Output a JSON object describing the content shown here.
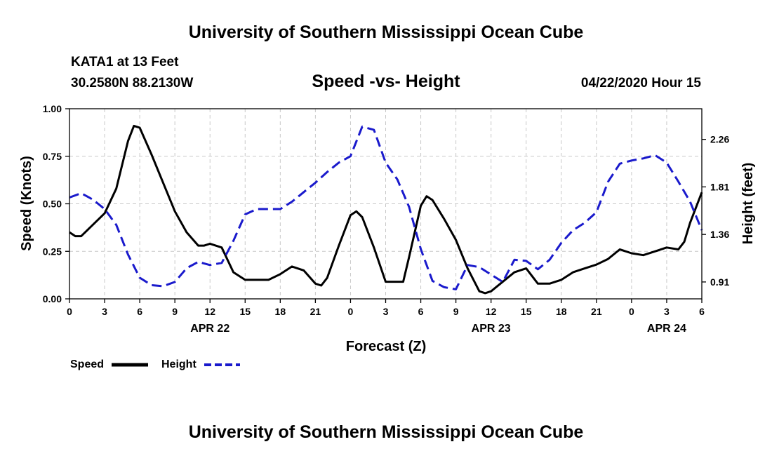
{
  "header": {
    "title": "University of Southern Mississippi Ocean Cube",
    "station": "KATA1 at 13 Feet",
    "location": "30.2580N 88.2130W",
    "plot_title": "Speed -vs- Height",
    "timestamp": "04/22/2020 Hour 15"
  },
  "footer": {
    "title": "University of Southern Mississippi Ocean Cube"
  },
  "legend": {
    "speed_label": "Speed",
    "height_label": "Height"
  },
  "colors": {
    "speed": "#000000",
    "height": "#1a1acc",
    "grid": "#c8c8c8"
  },
  "chart_data": {
    "type": "line",
    "title": "Speed -vs- Height",
    "xlabel": "Forecast (Z)",
    "ylabel": "Speed (Knots)",
    "y2label": "Height (feet)",
    "x_range": [
      0,
      54
    ],
    "x_tick_values": [
      0,
      3,
      6,
      9,
      12,
      15,
      18,
      21,
      24,
      27,
      30,
      33,
      36,
      39,
      42,
      45,
      48,
      51,
      54
    ],
    "x_tick_labels": [
      "0",
      "3",
      "6",
      "9",
      "12",
      "15",
      "18",
      "21",
      "0",
      "3",
      "6",
      "9",
      "12",
      "15",
      "18",
      "21",
      "0",
      "3",
      "6"
    ],
    "date_labels": [
      {
        "label": "APR 22",
        "at": 12
      },
      {
        "label": "APR 23",
        "at": 36
      },
      {
        "label": "APR 24",
        "at": 51
      }
    ],
    "ylim": [
      0,
      1
    ],
    "y_ticks": [
      "0.00",
      "0.25",
      "0.50",
      "0.75",
      "1.00"
    ],
    "y2lim": [
      0.75,
      2.55
    ],
    "y2_ticks": [
      "0.91",
      "1.36",
      "1.81",
      "2.26"
    ],
    "grid": true,
    "series": [
      {
        "name": "Speed",
        "axis": "left",
        "style": "solid",
        "x": [
          0,
          0.5,
          1,
          2,
          3,
          4,
          5,
          5.5,
          6,
          7,
          8,
          9,
          10,
          11,
          11.5,
          12,
          13,
          14,
          15,
          16,
          17,
          18,
          19,
          20,
          21,
          21.5,
          22,
          23,
          24,
          24.5,
          25,
          26,
          27,
          28,
          28.5,
          29,
          30,
          30.5,
          31,
          32,
          33,
          34,
          35,
          35.5,
          36,
          37,
          38,
          39,
          40,
          41,
          41.5,
          42,
          43,
          44,
          45,
          46,
          47,
          48,
          49,
          50,
          51,
          52,
          52.5,
          53,
          54
        ],
        "values": [
          0.35,
          0.33,
          0.33,
          0.39,
          0.45,
          0.58,
          0.83,
          0.91,
          0.9,
          0.76,
          0.61,
          0.46,
          0.35,
          0.28,
          0.28,
          0.29,
          0.27,
          0.14,
          0.1,
          0.1,
          0.1,
          0.13,
          0.17,
          0.15,
          0.08,
          0.07,
          0.11,
          0.28,
          0.44,
          0.46,
          0.43,
          0.27,
          0.09,
          0.09,
          0.09,
          0.22,
          0.49,
          0.54,
          0.52,
          0.42,
          0.31,
          0.16,
          0.04,
          0.03,
          0.04,
          0.09,
          0.14,
          0.16,
          0.08,
          0.08,
          0.09,
          0.1,
          0.14,
          0.16,
          0.18,
          0.21,
          0.26,
          0.24,
          0.23,
          0.25,
          0.27,
          0.26,
          0.3,
          0.4,
          0.56
        ]
      },
      {
        "name": "Height",
        "axis": "right",
        "style": "dashed",
        "x": [
          0,
          1,
          2,
          3,
          4,
          5,
          6,
          7,
          8,
          9,
          10,
          11,
          12,
          13,
          14,
          15,
          16,
          17,
          18,
          19,
          20,
          21,
          22,
          23,
          24,
          25,
          26,
          27,
          28,
          29,
          30,
          31,
          32,
          33,
          34,
          35,
          36,
          37,
          38,
          39,
          40,
          41,
          42,
          43,
          44,
          45,
          46,
          47,
          48,
          49,
          50,
          51,
          52,
          53,
          54
        ],
        "values": [
          1.71,
          1.75,
          1.69,
          1.6,
          1.45,
          1.17,
          0.95,
          0.88,
          0.87,
          0.91,
          1.04,
          1.1,
          1.07,
          1.09,
          1.3,
          1.55,
          1.6,
          1.6,
          1.6,
          1.67,
          1.76,
          1.85,
          1.95,
          2.04,
          2.1,
          2.38,
          2.35,
          2.04,
          1.88,
          1.62,
          1.22,
          0.92,
          0.86,
          0.84,
          1.07,
          1.05,
          0.98,
          0.91,
          1.12,
          1.11,
          1.03,
          1.12,
          1.28,
          1.4,
          1.47,
          1.57,
          1.86,
          2.03,
          2.06,
          2.08,
          2.11,
          2.04,
          1.86,
          1.67,
          1.4
        ]
      }
    ]
  }
}
